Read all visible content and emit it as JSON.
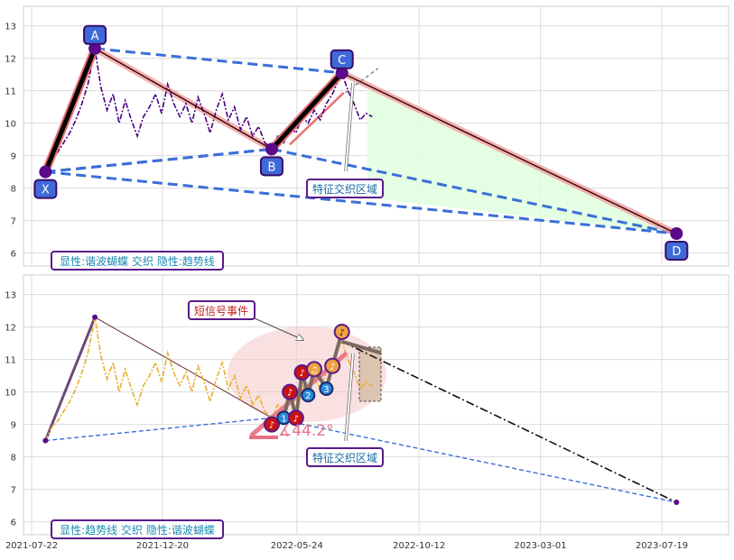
{
  "chart_data": [
    {
      "type": "line",
      "title": "",
      "ylim": [
        5.6,
        13.6
      ],
      "yticks": [
        6,
        7,
        8,
        9,
        10,
        11,
        12,
        13
      ],
      "grid": true,
      "caption": "显性:谐波蝴蝶 交织 隐性:趋势线",
      "price_color": "#4B0082",
      "pattern": {
        "points": [
          {
            "label": "X",
            "date": "2021-08-07",
            "value": 8.5
          },
          {
            "label": "A",
            "date": "2021-10-03",
            "value": 12.3
          },
          {
            "label": "B",
            "date": "2022-04-25",
            "value": 9.2
          },
          {
            "label": "C",
            "date": "2022-07-15",
            "value": 11.55
          },
          {
            "label": "D",
            "date": "2023-08-05",
            "value": 6.6
          }
        ]
      },
      "annotation": "特征交织区域",
      "price_series": [
        [
          "2021-08-07",
          8.5
        ],
        [
          "2021-08-14",
          8.9
        ],
        [
          "2021-08-21",
          9.1
        ],
        [
          "2021-08-28",
          9.4
        ],
        [
          "2021-09-04",
          9.7
        ],
        [
          "2021-09-11",
          10.1
        ],
        [
          "2021-09-18",
          10.6
        ],
        [
          "2021-09-25",
          11.2
        ],
        [
          "2021-10-03",
          12.3
        ],
        [
          "2021-10-10",
          11.1
        ],
        [
          "2021-10-17",
          10.4
        ],
        [
          "2021-10-24",
          10.9
        ],
        [
          "2021-10-31",
          10.0
        ],
        [
          "2021-11-07",
          10.7
        ],
        [
          "2021-11-14",
          10.1
        ],
        [
          "2021-11-21",
          9.6
        ],
        [
          "2021-11-28",
          10.2
        ],
        [
          "2021-12-05",
          10.5
        ],
        [
          "2021-12-12",
          10.9
        ],
        [
          "2021-12-19",
          10.3
        ],
        [
          "2021-12-26",
          11.2
        ],
        [
          "2022-01-02",
          10.6
        ],
        [
          "2022-01-09",
          10.2
        ],
        [
          "2022-01-16",
          10.6
        ],
        [
          "2022-01-23",
          10.0
        ],
        [
          "2022-01-30",
          10.8
        ],
        [
          "2022-02-06",
          10.3
        ],
        [
          "2022-02-13",
          9.7
        ],
        [
          "2022-02-20",
          10.4
        ],
        [
          "2022-02-27",
          10.9
        ],
        [
          "2022-03-06",
          10.1
        ],
        [
          "2022-03-13",
          10.5
        ],
        [
          "2022-03-20",
          9.8
        ],
        [
          "2022-03-27",
          10.2
        ],
        [
          "2022-04-03",
          9.6
        ],
        [
          "2022-04-10",
          9.9
        ],
        [
          "2022-04-17",
          9.4
        ],
        [
          "2022-04-25",
          9.2
        ],
        [
          "2022-05-02",
          9.6
        ],
        [
          "2022-05-09",
          9.4
        ],
        [
          "2022-05-16",
          9.9
        ],
        [
          "2022-05-23",
          9.7
        ],
        [
          "2022-05-30",
          10.2
        ],
        [
          "2022-06-06",
          10.0
        ],
        [
          "2022-06-13",
          10.4
        ],
        [
          "2022-06-20",
          10.1
        ],
        [
          "2022-06-27",
          10.6
        ],
        [
          "2022-07-04",
          10.9
        ],
        [
          "2022-07-15",
          11.55
        ],
        [
          "2022-07-22",
          11.0
        ],
        [
          "2022-07-29",
          10.6
        ],
        [
          "2022-08-05",
          10.1
        ],
        [
          "2022-08-12",
          10.3
        ],
        [
          "2022-08-19",
          10.2
        ]
      ]
    },
    {
      "type": "line",
      "title": "",
      "ylim": [
        5.6,
        13.6
      ],
      "yticks": [
        6,
        7,
        8,
        9,
        10,
        11,
        12,
        13
      ],
      "grid": true,
      "caption": "显性:趋势线 交织 隐性:谐波蝴蝶",
      "price_color": "#E8B030",
      "signal_label": "短信号事件",
      "annotation": "特征交织区域",
      "angle_label": "∡44.2°",
      "x_tick_labels": [
        "2021-07-22",
        "2021-12-20",
        "2022-05-24",
        "2022-10-12",
        "2023-03-01",
        "2023-07-19"
      ],
      "zigzag": [
        {
          "date": "2022-04-25",
          "value": 9.0,
          "kind": "peak",
          "symbol": "♪"
        },
        {
          "date": "2022-05-09",
          "value": 9.2,
          "kind": "trough",
          "symbol": "1"
        },
        {
          "date": "2022-05-16",
          "value": 10.0,
          "kind": "peak",
          "symbol": "♪"
        },
        {
          "date": "2022-05-23",
          "value": 9.2,
          "kind": "peak",
          "symbol": "♪"
        },
        {
          "date": "2022-05-30",
          "value": 10.6,
          "kind": "peak",
          "symbol": "♪"
        },
        {
          "date": "2022-06-06",
          "value": 9.9,
          "kind": "trough",
          "symbol": "2"
        },
        {
          "date": "2022-06-13",
          "value": 10.7,
          "kind": "peak",
          "symbol": "♫"
        },
        {
          "date": "2022-06-27",
          "value": 10.1,
          "kind": "trough",
          "symbol": "3"
        },
        {
          "date": "2022-07-04",
          "value": 10.8,
          "kind": "peak",
          "symbol": "♪"
        },
        {
          "date": "2022-07-15",
          "value": 11.85,
          "kind": "top",
          "symbol": "♪"
        }
      ],
      "trend_dashdot": {
        "from": {
          "date": "2022-07-15",
          "value": 11.55
        },
        "to": {
          "date": "2023-08-05",
          "value": 6.6
        }
      }
    }
  ]
}
